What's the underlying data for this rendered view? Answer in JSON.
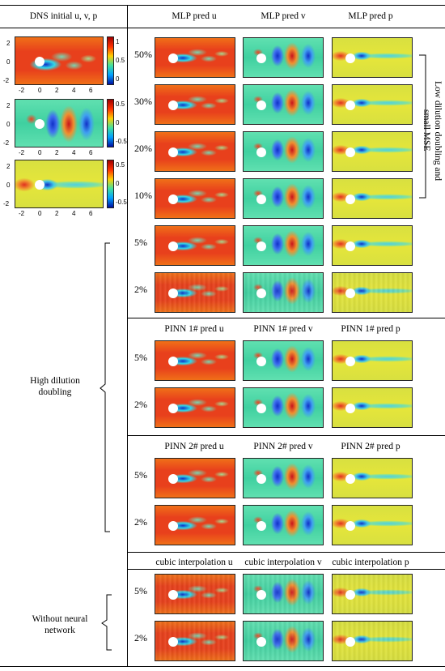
{
  "left": {
    "header": "DNS initial u, v, p",
    "colorbars": [
      {
        "ticks": [
          "1",
          "0.5",
          "0"
        ]
      },
      {
        "ticks": [
          "0.5",
          "0",
          "-0.5"
        ]
      },
      {
        "ticks": [
          "0.5",
          "0",
          "-0.5"
        ]
      }
    ],
    "yticks": [
      "2",
      "0",
      "-2"
    ],
    "xticks": [
      "-2",
      "0",
      "2",
      "4",
      "6"
    ],
    "group_high": "High dilution doubling",
    "group_without": "Without neural network"
  },
  "right": {
    "low_dilution_label": "Low dilution doubling and small MSE",
    "sections": [
      {
        "headers": [
          "MLP pred u",
          "MLP pred v",
          "MLP pred p"
        ],
        "rows": [
          "50%",
          "30%",
          "20%",
          "10%",
          "5%",
          "2%"
        ]
      },
      {
        "headers": [
          "PINN 1# pred u",
          "PINN 1# pred v",
          "PINN 1# pred p"
        ],
        "rows": [
          "5%",
          "2%"
        ]
      },
      {
        "headers": [
          "PINN 2# pred u",
          "PINN 2# pred v",
          "PINN 2# pred p"
        ],
        "rows": [
          "5%",
          "2%"
        ]
      },
      {
        "headers": [
          "cubic interpolation u",
          "cubic interpolation v",
          "cubic interpolation p"
        ],
        "rows": [
          "5%",
          "2%"
        ]
      }
    ]
  },
  "field_colors": {
    "u_bg": "#e8401c",
    "u_dark": "#f07018",
    "v_bg": "#3fd0a0",
    "p_bg": "#e6e63a",
    "red": "#c8141c",
    "blue": "#1030c8",
    "cyan": "#30d8e8"
  }
}
